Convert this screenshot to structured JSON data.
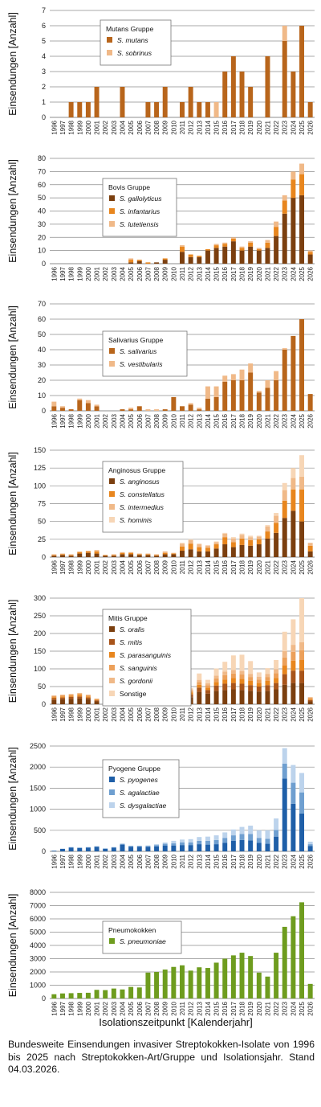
{
  "xlabel": "Isolationszeitpunkt [Kalenderjahr]",
  "caption": "Bundesweite Einsendungen invasiver Streptokokken-Isolate von 1996 bis 2025 nach Streptokokken-Art/Gruppe und Isolationsjahr. Stand 04.03.2026.",
  "colors": {
    "brown_dark": "#7B3F0F",
    "brown": "#B8651B",
    "orange": "#E8861E",
    "peach": "#F0B988",
    "peach_light": "#F7D6B6",
    "blue_dark": "#1F5FA8",
    "blue": "#6F9FD0",
    "blue_light": "#BCD3EC",
    "green": "#6E9C1E"
  },
  "chart_data": [
    {
      "type": "bar",
      "stacked": true,
      "group": "Mutans Gruppe",
      "ylabel": "Einsendungen [Anzahl]",
      "ylim": [
        0,
        7
      ],
      "yticks": [
        0,
        1,
        2,
        3,
        4,
        5,
        6,
        7
      ],
      "categories": [
        "1996",
        "1997",
        "1998",
        "1999",
        "2000",
        "2001",
        "2002",
        "2003",
        "2004",
        "2005",
        "2006",
        "2007",
        "2008",
        "2009",
        "2010",
        "2011",
        "2012",
        "2013",
        "2014",
        "2015",
        "2016",
        "2017",
        "2018",
        "2019",
        "2020",
        "2021",
        "2022",
        "2023",
        "2024",
        "2025",
        "2026"
      ],
      "series": [
        {
          "name": "S. mutans",
          "color": "#B8651B",
          "values": [
            0,
            0,
            1,
            1,
            1,
            2,
            0,
            0,
            2,
            0,
            0,
            1,
            1,
            2,
            0,
            1,
            2,
            1,
            1,
            0,
            3,
            4,
            3,
            2,
            0,
            4,
            0,
            5,
            3,
            6,
            1
          ]
        },
        {
          "name": "S. sobrinus",
          "color": "#F0B988",
          "values": [
            0,
            0,
            0,
            0,
            0,
            0,
            0,
            0,
            0,
            0,
            0,
            0,
            0,
            0,
            0,
            0,
            0,
            0,
            0,
            1,
            0,
            0,
            0,
            0,
            0,
            0,
            0,
            1,
            0,
            0,
            0
          ]
        }
      ]
    },
    {
      "type": "bar",
      "stacked": true,
      "group": "Bovis Gruppe",
      "ylabel": "Einsendungen [Anzahl]",
      "ylim": [
        0,
        80
      ],
      "yticks": [
        0,
        10,
        20,
        30,
        40,
        50,
        60,
        70,
        80
      ],
      "categories": [
        "1996",
        "1997",
        "1998",
        "1999",
        "2000",
        "2001",
        "2002",
        "2003",
        "2004",
        "2005",
        "2006",
        "2007",
        "2008",
        "2009",
        "2010",
        "2011",
        "2012",
        "2013",
        "2014",
        "2015",
        "2016",
        "2017",
        "2018",
        "2019",
        "2020",
        "2021",
        "2022",
        "2023",
        "2024",
        "2025",
        "2026"
      ],
      "series": [
        {
          "name": "S. gallolyticus",
          "color": "#7B3F0F",
          "values": [
            0,
            0,
            0,
            0,
            0,
            0,
            0,
            0,
            0,
            1,
            2,
            0,
            1,
            3,
            0,
            9,
            5,
            5,
            10,
            12,
            13,
            17,
            10,
            13,
            10,
            12,
            21,
            38,
            50,
            52,
            7
          ]
        },
        {
          "name": "S. infantarius",
          "color": "#E8861E",
          "values": [
            0,
            0,
            0,
            0,
            0,
            0,
            0,
            0,
            0,
            2,
            1,
            1,
            0,
            1,
            0,
            4,
            2,
            1,
            1,
            2,
            2,
            2,
            2,
            3,
            1,
            4,
            7,
            10,
            14,
            16,
            2
          ]
        },
        {
          "name": "S. lutetiensis",
          "color": "#F0B988",
          "values": [
            0,
            0,
            0,
            0,
            0,
            0,
            0,
            0,
            0,
            1,
            0,
            0,
            0,
            0,
            0,
            1,
            0,
            0,
            0,
            1,
            1,
            1,
            1,
            1,
            1,
            2,
            4,
            4,
            6,
            8,
            1
          ]
        }
      ]
    },
    {
      "type": "bar",
      "stacked": true,
      "group": "Salivarius Gruppe",
      "ylabel": "Einsendungen [Anzahl]",
      "ylim": [
        0,
        70
      ],
      "yticks": [
        0,
        10,
        20,
        30,
        40,
        50,
        60,
        70
      ],
      "categories": [
        "1996",
        "1997",
        "1998",
        "1999",
        "2000",
        "2001",
        "2002",
        "2003",
        "2004",
        "2005",
        "2006",
        "2007",
        "2008",
        "2009",
        "2010",
        "2011",
        "2012",
        "2013",
        "2014",
        "2015",
        "2016",
        "2017",
        "2018",
        "2019",
        "2020",
        "2021",
        "2022",
        "2023",
        "2024",
        "2025",
        "2026"
      ],
      "series": [
        {
          "name": "S. salivarius",
          "color": "#B8651B",
          "values": [
            3,
            2,
            1,
            7,
            5,
            3,
            0,
            0,
            1,
            1,
            3,
            0,
            0,
            1,
            9,
            3,
            4,
            1,
            8,
            9,
            19,
            20,
            20,
            25,
            12,
            15,
            20,
            40,
            49,
            60,
            11
          ]
        },
        {
          "name": "S. vestibularis",
          "color": "#F0B988",
          "values": [
            3,
            1,
            0,
            1,
            2,
            1,
            0,
            0,
            0,
            1,
            0,
            1,
            1,
            0,
            0,
            0,
            1,
            1,
            8,
            7,
            4,
            4,
            7,
            6,
            1,
            5,
            6,
            1,
            0,
            0,
            0
          ]
        }
      ]
    },
    {
      "type": "bar",
      "stacked": true,
      "group": "Anginosus Gruppe",
      "ylabel": "Einsendungen [Anzahl]",
      "ylim": [
        0,
        150
      ],
      "yticks": [
        0,
        25,
        50,
        75,
        100,
        125,
        150
      ],
      "categories": [
        "1996",
        "1997",
        "1998",
        "1999",
        "2000",
        "2001",
        "2002",
        "2003",
        "2004",
        "2005",
        "2006",
        "2007",
        "2008",
        "2009",
        "2010",
        "2011",
        "2012",
        "2013",
        "2014",
        "2015",
        "2016",
        "2017",
        "2018",
        "2019",
        "2020",
        "2021",
        "2022",
        "2023",
        "2024",
        "2025",
        "2026"
      ],
      "series": [
        {
          "name": "S. anginosus",
          "color": "#7B3F0F",
          "values": [
            2,
            3,
            2,
            5,
            6,
            5,
            2,
            2,
            4,
            4,
            3,
            3,
            2,
            4,
            4,
            9,
            11,
            8,
            8,
            12,
            18,
            14,
            17,
            16,
            18,
            26,
            34,
            55,
            65,
            50,
            8
          ]
        },
        {
          "name": "S. constellatus",
          "color": "#E8861E",
          "values": [
            1,
            1,
            1,
            2,
            2,
            3,
            1,
            1,
            2,
            2,
            1,
            1,
            1,
            2,
            1,
            6,
            8,
            6,
            5,
            6,
            10,
            7,
            9,
            8,
            7,
            10,
            14,
            24,
            30,
            45,
            8
          ]
        },
        {
          "name": "S. intermedius",
          "color": "#F0B988",
          "values": [
            1,
            1,
            1,
            1,
            1,
            2,
            0,
            1,
            1,
            1,
            1,
            1,
            1,
            2,
            1,
            4,
            5,
            4,
            3,
            3,
            5,
            5,
            5,
            4,
            4,
            7,
            10,
            15,
            16,
            18,
            4
          ]
        },
        {
          "name": "S. hominis",
          "color": "#F7D6B6",
          "values": [
            0,
            0,
            0,
            0,
            0,
            0,
            0,
            0,
            0,
            0,
            0,
            0,
            0,
            0,
            0,
            1,
            1,
            1,
            1,
            1,
            1,
            2,
            2,
            2,
            1,
            2,
            4,
            10,
            14,
            30,
            0
          ]
        }
      ]
    },
    {
      "type": "bar",
      "stacked": true,
      "group": "Mitis Gruppe",
      "ylabel": "Einsendungen [Anzahl]",
      "ylim": [
        0,
        300
      ],
      "yticks": [
        0,
        50,
        100,
        150,
        200,
        250,
        300
      ],
      "categories": [
        "1996",
        "1997",
        "1998",
        "1999",
        "2000",
        "2001",
        "2002",
        "2003",
        "2004",
        "2005",
        "2006",
        "2007",
        "2008",
        "2009",
        "2010",
        "2011",
        "2012",
        "2013",
        "2014",
        "2015",
        "2016",
        "2017",
        "2018",
        "2019",
        "2020",
        "2021",
        "2022",
        "2023",
        "2024",
        "2025",
        "2026"
      ],
      "series": [
        {
          "name": "S. oralis",
          "color": "#7B3F0F",
          "values": [
            12,
            14,
            15,
            16,
            14,
            8,
            3,
            5,
            6,
            6,
            7,
            8,
            9,
            10,
            8,
            12,
            20,
            35,
            30,
            38,
            40,
            42,
            40,
            38,
            36,
            38,
            42,
            55,
            60,
            60,
            8
          ]
        },
        {
          "name": "S. mitis",
          "color": "#A8541A",
          "values": [
            5,
            5,
            6,
            6,
            5,
            3,
            1,
            2,
            2,
            2,
            3,
            3,
            3,
            4,
            3,
            5,
            8,
            12,
            10,
            15,
            18,
            18,
            18,
            16,
            14,
            16,
            18,
            30,
            35,
            35,
            4
          ]
        },
        {
          "name": "S. parasanguinis",
          "color": "#E8861E",
          "values": [
            3,
            3,
            3,
            4,
            3,
            2,
            0,
            1,
            1,
            1,
            2,
            2,
            2,
            2,
            2,
            3,
            5,
            8,
            7,
            10,
            12,
            14,
            14,
            12,
            10,
            12,
            14,
            25,
            28,
            30,
            3
          ]
        },
        {
          "name": "S. sanguinis",
          "color": "#ECA05A",
          "values": [
            3,
            3,
            3,
            4,
            3,
            2,
            0,
            1,
            1,
            1,
            2,
            2,
            2,
            2,
            2,
            3,
            5,
            8,
            7,
            10,
            12,
            13,
            12,
            11,
            10,
            11,
            14,
            22,
            25,
            28,
            3
          ]
        },
        {
          "name": "S. gordonii",
          "color": "#F0B988",
          "values": [
            2,
            2,
            2,
            2,
            2,
            1,
            0,
            0,
            1,
            1,
            1,
            1,
            1,
            2,
            1,
            2,
            4,
            6,
            5,
            8,
            10,
            10,
            10,
            9,
            8,
            9,
            11,
            18,
            20,
            22,
            2
          ]
        },
        {
          "name": "Sonstige",
          "color": "#F7D6B6",
          "values": [
            0,
            0,
            0,
            0,
            0,
            0,
            0,
            0,
            0,
            0,
            0,
            0,
            0,
            0,
            0,
            2,
            4,
            18,
            10,
            20,
            28,
            41,
            46,
            36,
            12,
            16,
            26,
            55,
            72,
            125,
            0
          ]
        }
      ]
    },
    {
      "type": "bar",
      "stacked": true,
      "group": "Pyogene Gruppe",
      "ylabel": "Einsendungen [Anzahl]",
      "ylim": [
        0,
        2500
      ],
      "yticks": [
        0,
        500,
        1000,
        1500,
        2000,
        2500
      ],
      "categories": [
        "1996",
        "1997",
        "1998",
        "1999",
        "2000",
        "2001",
        "2002",
        "2003",
        "2004",
        "2005",
        "2006",
        "2007",
        "2008",
        "2009",
        "2010",
        "2011",
        "2012",
        "2013",
        "2014",
        "2015",
        "2016",
        "2017",
        "2018",
        "2019",
        "2020",
        "2021",
        "2022",
        "2023",
        "2024",
        "2025",
        "2026"
      ],
      "series": [
        {
          "name": "S. pyogenes",
          "color": "#1F5FA8",
          "values": [
            15,
            60,
            90,
            80,
            90,
            110,
            60,
            90,
            160,
            110,
            110,
            110,
            120,
            140,
            140,
            150,
            150,
            170,
            160,
            170,
            200,
            250,
            270,
            260,
            200,
            180,
            350,
            1730,
            1130,
            900,
            130
          ]
        },
        {
          "name": "S. agalactiae",
          "color": "#6F9FD0",
          "values": [
            0,
            0,
            10,
            10,
            10,
            10,
            10,
            10,
            20,
            20,
            20,
            20,
            30,
            40,
            50,
            60,
            60,
            80,
            90,
            100,
            120,
            130,
            140,
            150,
            120,
            120,
            160,
            350,
            500,
            500,
            40
          ]
        },
        {
          "name": "S. dysgalactiae",
          "color": "#BCD3EC",
          "values": [
            0,
            0,
            0,
            0,
            0,
            0,
            0,
            0,
            0,
            0,
            0,
            10,
            20,
            30,
            60,
            70,
            80,
            90,
            100,
            110,
            130,
            140,
            170,
            200,
            180,
            200,
            270,
            370,
            420,
            460,
            60
          ]
        }
      ]
    },
    {
      "type": "bar",
      "stacked": false,
      "group": "Pneumokokken",
      "ylabel": "Einsendungen [Anzahl]",
      "ylim": [
        0,
        8000
      ],
      "yticks": [
        0,
        1000,
        2000,
        3000,
        4000,
        5000,
        6000,
        7000,
        8000
      ],
      "categories": [
        "1996",
        "1997",
        "1998",
        "1999",
        "2000",
        "2001",
        "2002",
        "2003",
        "2004",
        "2005",
        "2006",
        "2007",
        "2008",
        "2009",
        "2010",
        "2011",
        "2012",
        "2013",
        "2014",
        "2015",
        "2016",
        "2017",
        "2018",
        "2019",
        "2020",
        "2021",
        "2022",
        "2023",
        "2024",
        "2025",
        "2026"
      ],
      "series": [
        {
          "name": "S. pneumoniae",
          "color": "#6E9C1E",
          "values": [
            320,
            380,
            400,
            420,
            430,
            650,
            630,
            750,
            680,
            870,
            830,
            1950,
            2000,
            2180,
            2380,
            2500,
            2100,
            2350,
            2300,
            2700,
            3000,
            3250,
            3450,
            3200,
            1950,
            1650,
            3450,
            5400,
            6200,
            7250,
            1100
          ]
        }
      ]
    }
  ]
}
